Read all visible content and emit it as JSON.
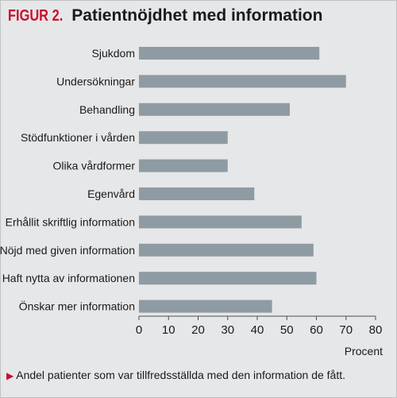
{
  "figure": {
    "label": "FIGUR 2.",
    "title": "Patientnöjdhet med information",
    "caption_marker": "▶",
    "caption": "Andel patienter som var tillfredsställda med den information de fått."
  },
  "chart_data": {
    "type": "bar",
    "orientation": "horizontal",
    "title": "Patientnöjdhet med information",
    "categories": [
      "Sjukdom",
      "Undersökningar",
      "Behandling",
      "Stödfunktioner i vården",
      "Olika vårdformer",
      "Egenvård",
      "Erhållit skriftlig information",
      "Nöjd med given information",
      "Haft nytta av informationen",
      "Önskar mer information"
    ],
    "values": [
      61,
      70,
      51,
      30,
      30,
      39,
      55,
      59,
      60,
      45
    ],
    "xlabel": "Procent",
    "ylabel": "",
    "xlim": [
      0,
      80
    ],
    "xticks": [
      0,
      10,
      20,
      30,
      40,
      50,
      60,
      70,
      80
    ],
    "grid": false,
    "bar_color": "#8e9ba3"
  },
  "colors": {
    "background": "#e6e7e8",
    "accent": "#c8102e",
    "bar": "#8e9ba3",
    "axis": "#4d4d4d"
  }
}
